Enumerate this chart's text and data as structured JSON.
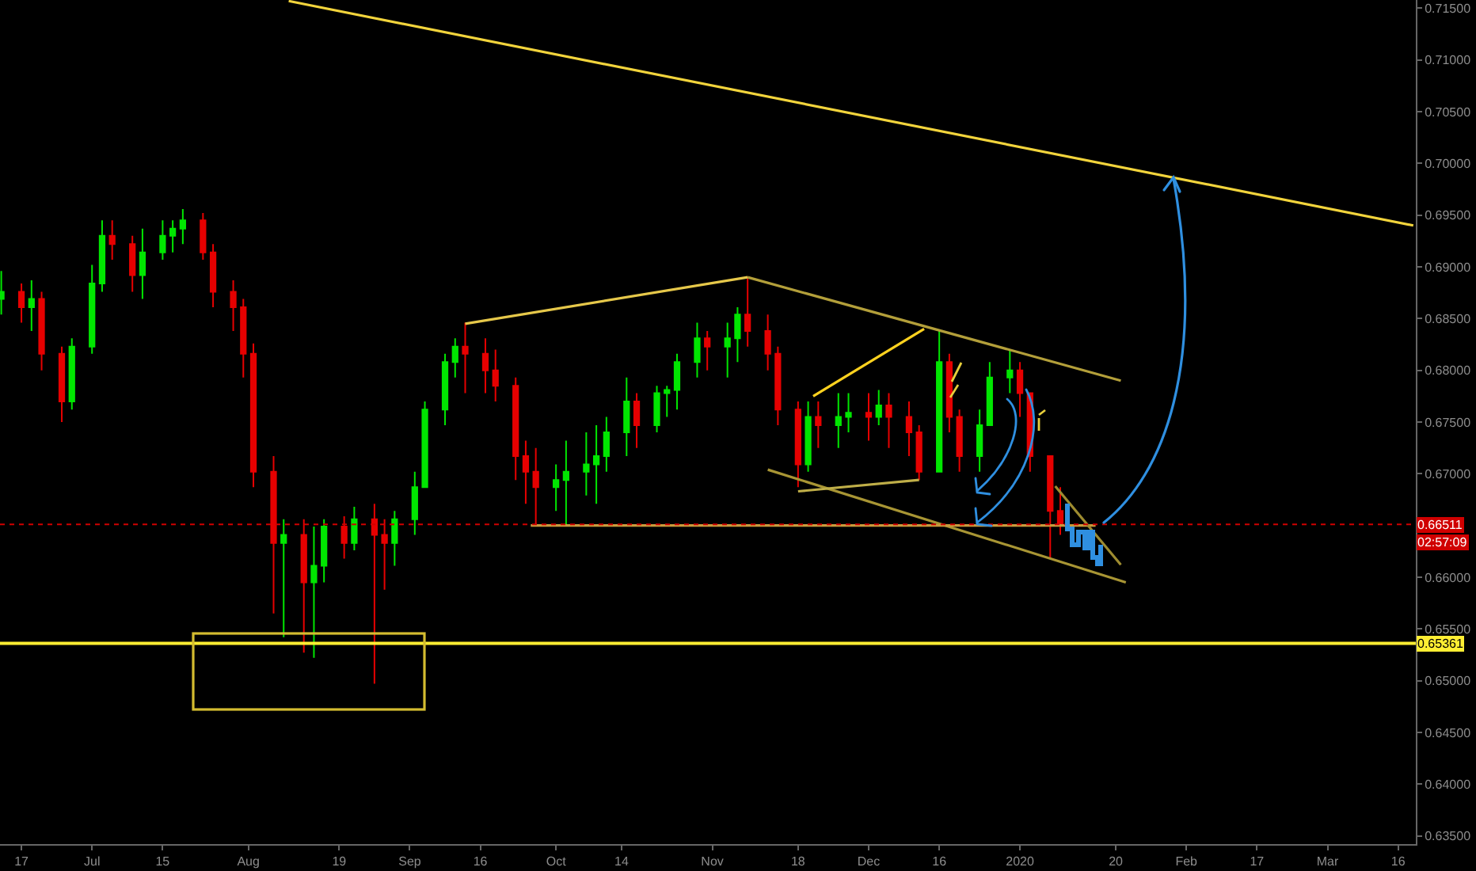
{
  "chart_data": {
    "type": "candlestick",
    "x": [
      "2019-06-13",
      "2019-06-17",
      "2019-06-19",
      "2019-06-21",
      "2019-06-25",
      "2019-06-27",
      "2019-07-01",
      "2019-07-03",
      "2019-07-05",
      "2019-07-09",
      "2019-07-11",
      "2019-07-15",
      "2019-07-17",
      "2019-07-19",
      "2019-07-23",
      "2019-07-25",
      "2019-07-29",
      "2019-07-31",
      "2019-08-02",
      "2019-08-06",
      "2019-08-08",
      "2019-08-12",
      "2019-08-14",
      "2019-08-16",
      "2019-08-20",
      "2019-08-22",
      "2019-08-26",
      "2019-08-28",
      "2019-08-30",
      "2019-09-03",
      "2019-09-05",
      "2019-09-09",
      "2019-09-11",
      "2019-09-13",
      "2019-09-17",
      "2019-09-19",
      "2019-09-23",
      "2019-09-25",
      "2019-09-27",
      "2019-10-01",
      "2019-10-03",
      "2019-10-07",
      "2019-10-09",
      "2019-10-11",
      "2019-10-15",
      "2019-10-17",
      "2019-10-21",
      "2019-10-23",
      "2019-10-25",
      "2019-10-29",
      "2019-10-31",
      "2019-11-04",
      "2019-11-06",
      "2019-11-08",
      "2019-11-12",
      "2019-11-14",
      "2019-11-18",
      "2019-11-20",
      "2019-11-22",
      "2019-11-26",
      "2019-11-28",
      "2019-12-02",
      "2019-12-04",
      "2019-12-06",
      "2019-12-10",
      "2019-12-12",
      "2019-12-16",
      "2019-12-18",
      "2019-12-20",
      "2019-12-24",
      "2019-12-26",
      "2019-12-30",
      "2020-01-01",
      "2020-01-03",
      "2020-01-07",
      "2020-01-09"
    ],
    "ohlc": [
      [
        0.6869,
        0.6896,
        0.6854,
        0.6876
      ],
      [
        0.6876,
        0.6884,
        0.6846,
        0.6861
      ],
      [
        0.6861,
        0.6887,
        0.6838,
        0.6869
      ],
      [
        0.6869,
        0.6876,
        0.68,
        0.6816
      ],
      [
        0.6816,
        0.6823,
        0.675,
        0.677
      ],
      [
        0.677,
        0.6831,
        0.6762,
        0.6823
      ],
      [
        0.6823,
        0.6902,
        0.6816,
        0.6884
      ],
      [
        0.6884,
        0.6945,
        0.6876,
        0.693
      ],
      [
        0.693,
        0.6945,
        0.6907,
        0.6922
      ],
      [
        0.6922,
        0.693,
        0.6876,
        0.6892
      ],
      [
        0.6892,
        0.6937,
        0.6869,
        0.6914
      ],
      [
        0.6914,
        0.6945,
        0.6907,
        0.693
      ],
      [
        0.693,
        0.6945,
        0.6914,
        0.6937
      ],
      [
        0.6937,
        0.6956,
        0.6922,
        0.6945
      ],
      [
        0.6945,
        0.6952,
        0.6907,
        0.6914
      ],
      [
        0.6914,
        0.6922,
        0.6861,
        0.6876
      ],
      [
        0.6876,
        0.6887,
        0.6838,
        0.6861
      ],
      [
        0.6861,
        0.6869,
        0.6793,
        0.6816
      ],
      [
        0.6816,
        0.6826,
        0.6687,
        0.6702
      ],
      [
        0.6702,
        0.6717,
        0.6565,
        0.6633
      ],
      [
        0.6633,
        0.6656,
        0.6542,
        0.6641
      ],
      [
        0.6641,
        0.6656,
        0.6527,
        0.6595
      ],
      [
        0.6595,
        0.6649,
        0.6522,
        0.6611
      ],
      [
        0.6611,
        0.6656,
        0.6595,
        0.6649
      ],
      [
        0.6649,
        0.6659,
        0.6618,
        0.6633
      ],
      [
        0.6633,
        0.6668,
        0.6626,
        0.6656
      ],
      [
        0.6656,
        0.6671,
        0.6497,
        0.6641
      ],
      [
        0.6641,
        0.6656,
        0.6588,
        0.6633
      ],
      [
        0.6633,
        0.6664,
        0.6611,
        0.6656
      ],
      [
        0.6656,
        0.6702,
        0.6641,
        0.6687
      ],
      [
        0.6687,
        0.677,
        0.6687,
        0.6762
      ],
      [
        0.6762,
        0.6816,
        0.6747,
        0.6808
      ],
      [
        0.6808,
        0.6831,
        0.6793,
        0.6823
      ],
      [
        0.6823,
        0.6846,
        0.6778,
        0.6816
      ],
      [
        0.6816,
        0.6831,
        0.6778,
        0.68
      ],
      [
        0.68,
        0.682,
        0.677,
        0.6785
      ],
      [
        0.6785,
        0.6793,
        0.6694,
        0.6717
      ],
      [
        0.6717,
        0.6732,
        0.6671,
        0.6702
      ],
      [
        0.6702,
        0.6725,
        0.6649,
        0.6687
      ],
      [
        0.6687,
        0.6709,
        0.6664,
        0.6694
      ],
      [
        0.6694,
        0.6732,
        0.6651,
        0.6702
      ],
      [
        0.6702,
        0.674,
        0.6679,
        0.6709
      ],
      [
        0.6709,
        0.6747,
        0.6671,
        0.6717
      ],
      [
        0.6717,
        0.6755,
        0.6702,
        0.674
      ],
      [
        0.674,
        0.6793,
        0.6717,
        0.677
      ],
      [
        0.677,
        0.6778,
        0.6725,
        0.6747
      ],
      [
        0.6747,
        0.6785,
        0.674,
        0.6778
      ],
      [
        0.6778,
        0.6785,
        0.6755,
        0.6781
      ],
      [
        0.6781,
        0.6816,
        0.6762,
        0.6808
      ],
      [
        0.6808,
        0.6846,
        0.6793,
        0.6831
      ],
      [
        0.6831,
        0.6838,
        0.68,
        0.6823
      ],
      [
        0.6823,
        0.6846,
        0.6793,
        0.6831
      ],
      [
        0.6831,
        0.6861,
        0.6808,
        0.6854
      ],
      [
        0.6854,
        0.689,
        0.6823,
        0.6838
      ],
      [
        0.6838,
        0.6854,
        0.68,
        0.6816
      ],
      [
        0.6816,
        0.6823,
        0.6747,
        0.6762
      ],
      [
        0.6762,
        0.677,
        0.6687,
        0.6709
      ],
      [
        0.6709,
        0.677,
        0.6702,
        0.6755
      ],
      [
        0.6755,
        0.677,
        0.6725,
        0.6747
      ],
      [
        0.6747,
        0.6778,
        0.6725,
        0.6755
      ],
      [
        0.6755,
        0.6778,
        0.674,
        0.6759
      ],
      [
        0.6759,
        0.6778,
        0.6732,
        0.6755
      ],
      [
        0.6755,
        0.6781,
        0.6747,
        0.6766
      ],
      [
        0.6766,
        0.6778,
        0.6725,
        0.6755
      ],
      [
        0.6755,
        0.677,
        0.6717,
        0.674
      ],
      [
        0.674,
        0.6747,
        0.6694,
        0.6702
      ],
      [
        0.6702,
        0.6838,
        0.6702,
        0.6808
      ],
      [
        0.6808,
        0.6816,
        0.674,
        0.6755
      ],
      [
        0.6755,
        0.6762,
        0.6702,
        0.6717
      ],
      [
        0.6717,
        0.6762,
        0.6702,
        0.6747
      ],
      [
        0.6747,
        0.6808,
        0.6747,
        0.6793
      ],
      [
        0.6793,
        0.682,
        0.6778,
        0.68
      ],
      [
        0.68,
        0.6808,
        0.6755,
        0.6778
      ],
      [
        0.6778,
        0.6778,
        0.6702,
        0.6717
      ],
      [
        0.6717,
        0.6717,
        0.6618,
        0.6664
      ],
      [
        0.6664,
        0.6687,
        0.6641,
        0.6651
      ]
    ],
    "colors": [
      "#00e600",
      "#e60000",
      "#00e600",
      "#e60000",
      "#e60000",
      "#00e600",
      "#00e600",
      "#00e600",
      "#e60000",
      "#e60000",
      "#00e600",
      "#00e600",
      "#00e600",
      "#00e600",
      "#e60000",
      "#e60000",
      "#e60000",
      "#e60000",
      "#e60000",
      "#e60000",
      "#00e600",
      "#e60000",
      "#00e600",
      "#00e600",
      "#e60000",
      "#00e600",
      "#e60000",
      "#e60000",
      "#00e600",
      "#00e600",
      "#00e600",
      "#00e600",
      "#00e600",
      "#e60000",
      "#e60000",
      "#e60000",
      "#e60000",
      "#e60000",
      "#e60000",
      "#00e600",
      "#00e600",
      "#00e600",
      "#00e600",
      "#00e600",
      "#00e600",
      "#e60000",
      "#00e600",
      "#00e600",
      "#00e600",
      "#00e600",
      "#e60000",
      "#00e600",
      "#00e600",
      "#e60000",
      "#e60000",
      "#e60000",
      "#e60000",
      "#00e600",
      "#e60000",
      "#00e600",
      "#00e600",
      "#e60000",
      "#00e600",
      "#e60000",
      "#e60000",
      "#e60000",
      "#00e600",
      "#e60000",
      "#e60000",
      "#00e600",
      "#00e600",
      "#00e600",
      "#e60000",
      "#e60000",
      "#e60000",
      "#e60000"
    ],
    "series": [
      {
        "type": "line",
        "color": "#f2d43c",
        "x": [
          "2019-08-09",
          "2020-03-19"
        ],
        "values": [
          0.7157,
          0.694
        ]
      },
      {
        "type": "line",
        "color": "#e6c84a",
        "x": [
          "2019-09-13",
          "2019-11-08"
        ],
        "values": [
          0.6845,
          0.689
        ]
      },
      {
        "type": "line",
        "color": "#b39f3a",
        "x": [
          "2019-11-08",
          "2020-01-21"
        ],
        "values": [
          0.689,
          0.679
        ]
      },
      {
        "type": "line",
        "color": "#a89534",
        "x": [
          "2019-11-12",
          "2020-01-22"
        ],
        "values": [
          0.6704,
          0.6595
        ]
      },
      {
        "type": "line",
        "color": "#c99a3c",
        "x": [
          "2019-09-26",
          "2020-01-16"
        ],
        "values": [
          0.665,
          0.665
        ]
      },
      {
        "type": "line",
        "color": "#ffd21f",
        "x": [
          "2019-11-21",
          "2019-12-13"
        ],
        "values": [
          0.6775,
          0.684
        ]
      },
      {
        "type": "line",
        "color": "#bfae48",
        "x": [
          "2019-11-18",
          "2019-12-12"
        ],
        "values": [
          0.6683,
          0.6694
        ]
      },
      {
        "type": "line",
        "color": "#9e8c30",
        "x": [
          "2020-01-08",
          "2020-01-21"
        ],
        "values": [
          0.6688,
          0.6612
        ]
      }
    ],
    "ref_lines": [
      {
        "axis": "y",
        "value": 0.66511,
        "label": "0.66511",
        "color": "#d00000",
        "line_style": "dotted"
      },
      {
        "axis": "y",
        "value": 0.65361,
        "label": "0.65361",
        "color": "#ffee33",
        "line_style": "solid"
      }
    ],
    "annotations": [
      "02:57:09"
    ],
    "xlim": [
      "2019-06-12T18:00",
      "2020-03-19T12:00"
    ],
    "xticks": [
      {
        "value": "2019-06-17",
        "label": "17"
      },
      {
        "value": "2019-07-01",
        "label": "Jul"
      },
      {
        "value": "2019-07-15",
        "label": "15"
      },
      {
        "value": "2019-08-01",
        "label": "Aug"
      },
      {
        "value": "2019-08-19",
        "label": "19"
      },
      {
        "value": "2019-09-02",
        "label": "Sep"
      },
      {
        "value": "2019-09-16",
        "label": "16"
      },
      {
        "value": "2019-10-01",
        "label": "Oct"
      },
      {
        "value": "2019-10-14",
        "label": "14"
      },
      {
        "value": "2019-11-01",
        "label": "Nov"
      },
      {
        "value": "2019-11-18",
        "label": "18"
      },
      {
        "value": "2019-12-02",
        "label": "Dec"
      },
      {
        "value": "2019-12-16",
        "label": "16"
      },
      {
        "value": "2020-01-01",
        "label": "2020"
      },
      {
        "value": "2020-01-20",
        "label": "20"
      },
      {
        "value": "2020-02-03",
        "label": "Feb"
      },
      {
        "value": "2020-02-17",
        "label": "17"
      },
      {
        "value": "2020-03-02",
        "label": "Mar"
      },
      {
        "value": "2020-03-16",
        "label": "16"
      }
    ],
    "ylim": [
      0.6342,
      0.7158
    ],
    "yticks": [
      {
        "value": 0.635,
        "label": "0.63500"
      },
      {
        "value": 0.64,
        "label": "0.64000"
      },
      {
        "value": 0.645,
        "label": "0.64500"
      },
      {
        "value": 0.65,
        "label": "0.65000"
      },
      {
        "value": 0.655,
        "label": "0.65500"
      },
      {
        "value": 0.66,
        "label": "0.66000"
      },
      {
        "value": 0.67,
        "label": "0.67000"
      },
      {
        "value": 0.675,
        "label": "0.67500"
      },
      {
        "value": 0.68,
        "label": "0.68000"
      },
      {
        "value": 0.685,
        "label": "0.68500"
      },
      {
        "value": 0.69,
        "label": "0.69000"
      },
      {
        "value": 0.695,
        "label": "0.69500"
      },
      {
        "value": 0.7,
        "label": "0.70000"
      },
      {
        "value": 0.705,
        "label": "0.70500"
      },
      {
        "value": 0.71,
        "label": "0.71000"
      },
      {
        "value": 0.715,
        "label": "0.71500"
      }
    ]
  }
}
